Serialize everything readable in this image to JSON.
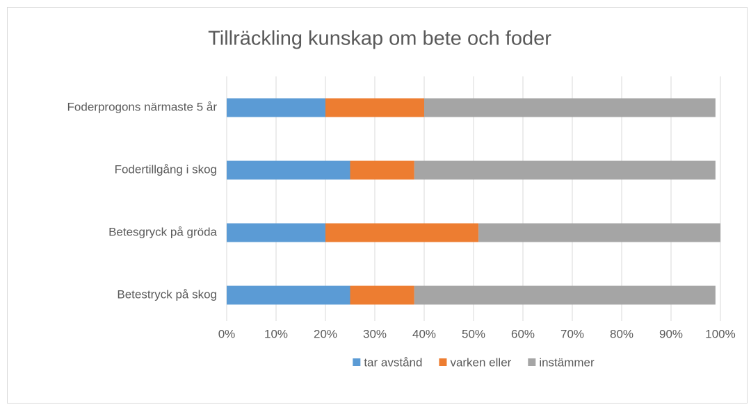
{
  "chart_data": {
    "type": "stacked_bar_horizontal",
    "title": "Tillräckling kunskap om bete och foder",
    "categories": [
      "Foderprogons närmaste 5 år",
      "Fodertillgång i skog",
      "Betesgryck på gröda",
      "Betestryck på skog"
    ],
    "series": [
      {
        "name": "tar avstånd",
        "color": "#5b9bd5",
        "values": [
          20,
          25,
          20,
          25
        ]
      },
      {
        "name": "varken eller",
        "color": "#ed7d31",
        "values": [
          20,
          13,
          31,
          13
        ]
      },
      {
        "name": "instämmer",
        "color": "#a5a5a5",
        "values": [
          59,
          61,
          49,
          61
        ]
      }
    ],
    "xlim": [
      0,
      100
    ],
    "xticks": [
      {
        "value": 0,
        "label": "0%"
      },
      {
        "value": 10,
        "label": "10%"
      },
      {
        "value": 20,
        "label": "20%"
      },
      {
        "value": 30,
        "label": "30%"
      },
      {
        "value": 40,
        "label": "40%"
      },
      {
        "value": 50,
        "label": "50%"
      },
      {
        "value": 60,
        "label": "60%"
      },
      {
        "value": 70,
        "label": "70%"
      },
      {
        "value": 80,
        "label": "80%"
      },
      {
        "value": 90,
        "label": "90%"
      },
      {
        "value": 100,
        "label": "100%"
      }
    ],
    "grid": true,
    "legend": "bottom"
  }
}
